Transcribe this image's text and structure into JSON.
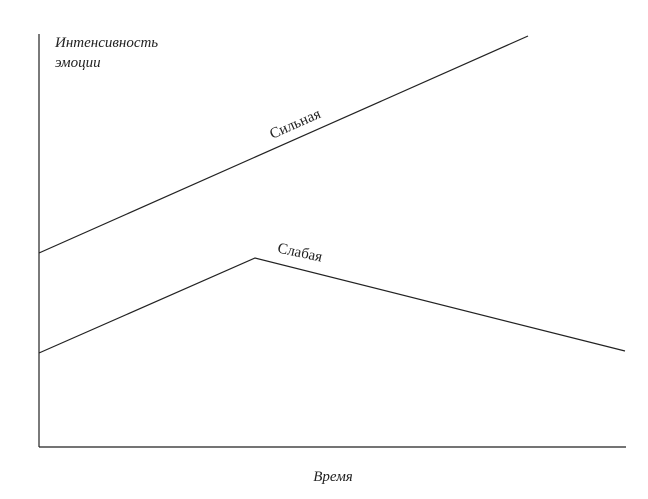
{
  "y_axis_label": [
    "Интенсивность",
    "эмоции"
  ],
  "x_axis_label": "Время",
  "lines": [
    {
      "label": "Сильная"
    },
    {
      "label": "Слабая"
    }
  ]
}
